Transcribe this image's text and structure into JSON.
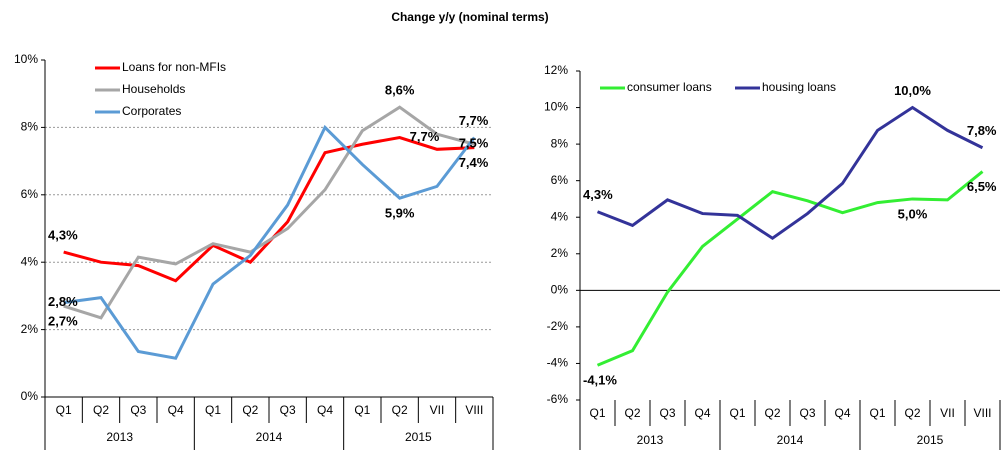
{
  "title": "Change y/y (nominal terms)",
  "chart_data": [
    {
      "type": "line",
      "categories": [
        "Q1",
        "Q2",
        "Q3",
        "Q4",
        "Q1",
        "Q2",
        "Q3",
        "Q4",
        "Q1",
        "Q2",
        "VII",
        "VIII"
      ],
      "groups": [
        "2013",
        "2014",
        "2015"
      ],
      "ylim": [
        0,
        10
      ],
      "yticks": [
        {
          "value": 0,
          "label": "0%"
        },
        {
          "value": 2,
          "label": "2%"
        },
        {
          "value": 4,
          "label": "4%"
        },
        {
          "value": 6,
          "label": "6%"
        },
        {
          "value": 8,
          "label": "8%"
        },
        {
          "value": 10,
          "label": "10%"
        }
      ],
      "grid": true,
      "series": [
        {
          "name": "Loans for non-MFIs",
          "color": "#ff0000",
          "label_color": "#ff0000",
          "values": [
            4.3,
            4.0,
            3.9,
            3.45,
            4.5,
            4.0,
            5.2,
            7.25,
            7.5,
            7.7,
            7.35,
            7.4
          ],
          "value_labels": [
            "4,3%",
            null,
            null,
            null,
            null,
            null,
            null,
            null,
            null,
            "7,7%",
            null,
            "7,4%"
          ]
        },
        {
          "name": "Households",
          "color": "#a6a6a6",
          "label_color": "#000000",
          "values": [
            2.7,
            2.35,
            4.15,
            3.95,
            4.55,
            4.3,
            5.0,
            6.15,
            7.9,
            8.6,
            7.8,
            7.5
          ],
          "value_labels": [
            "2,7%",
            null,
            null,
            null,
            null,
            null,
            null,
            null,
            null,
            "8,6%",
            null,
            "7,5%"
          ]
        },
        {
          "name": "Corporates",
          "color": "#5b9bd5",
          "label_color": "#333399",
          "values": [
            2.8,
            2.95,
            1.35,
            1.15,
            3.35,
            4.2,
            5.7,
            8.0,
            6.9,
            5.9,
            6.25,
            7.7
          ],
          "value_labels": [
            "2,8%",
            null,
            null,
            null,
            null,
            null,
            null,
            null,
            null,
            "5,9%",
            null,
            "7,7%"
          ]
        }
      ]
    },
    {
      "type": "line",
      "categories": [
        "Q1",
        "Q2",
        "Q3",
        "Q4",
        "Q1",
        "Q2",
        "Q3",
        "Q4",
        "Q1",
        "Q2",
        "VII",
        "VIII"
      ],
      "groups": [
        "2013",
        "2014",
        "2015"
      ],
      "ylim": [
        -6,
        12
      ],
      "yticks": [
        {
          "value": -6,
          "label": "-6%"
        },
        {
          "value": -4,
          "label": "-4%"
        },
        {
          "value": -2,
          "label": "-2%"
        },
        {
          "value": 0,
          "label": "0%"
        },
        {
          "value": 2,
          "label": "2%"
        },
        {
          "value": 4,
          "label": "4%"
        },
        {
          "value": 6,
          "label": "6%"
        },
        {
          "value": 8,
          "label": "8%"
        },
        {
          "value": 10,
          "label": "10%"
        },
        {
          "value": 12,
          "label": "12%"
        }
      ],
      "grid": false,
      "series": [
        {
          "name": "consumer loans",
          "color": "#33ee33",
          "label_color": "#339966",
          "values": [
            -4.1,
            -3.3,
            -0.1,
            2.4,
            3.9,
            5.4,
            4.9,
            4.25,
            4.8,
            5.0,
            4.95,
            6.5
          ],
          "value_labels": [
            "-4,1%",
            null,
            null,
            null,
            null,
            null,
            null,
            null,
            null,
            "5,0%",
            null,
            "6,5%"
          ]
        },
        {
          "name": "housing loans",
          "color": "#333399",
          "label_color": "#3333cc",
          "values": [
            4.3,
            3.55,
            4.95,
            4.2,
            4.1,
            2.85,
            4.2,
            5.85,
            8.75,
            10.0,
            8.75,
            7.8
          ],
          "value_labels": [
            "4,3%",
            null,
            null,
            null,
            null,
            null,
            null,
            null,
            null,
            "10,0%",
            null,
            "7,8%"
          ]
        }
      ]
    }
  ]
}
